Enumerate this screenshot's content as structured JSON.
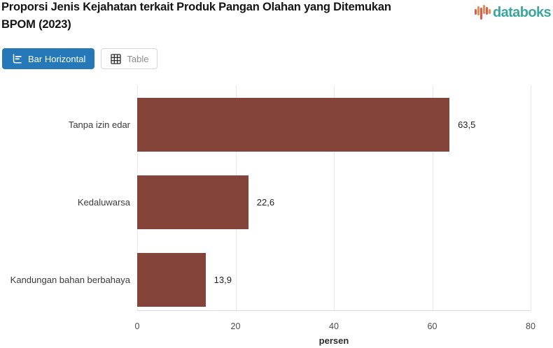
{
  "header": {
    "title_line1": "Proporsi Jenis Kejahatan terkait Produk Pangan Olahan yang Ditemukan",
    "title_line2": "BPOM (2023)",
    "logo_text": "databoks"
  },
  "tabs": [
    {
      "label": "Bar Horizontal",
      "icon": "bar-horizontal-icon",
      "active": true
    },
    {
      "label": "Table",
      "icon": "table-icon",
      "active": false
    }
  ],
  "chart_data": {
    "type": "bar",
    "orientation": "horizontal",
    "title": "Proporsi Jenis Kejahatan terkait Produk Pangan Olahan yang Ditemukan BPOM (2023)",
    "categories": [
      "Tanpa izin edar",
      "Kedaluwarsa",
      "Kandungan bahan berbahaya"
    ],
    "values": [
      63.5,
      22.6,
      13.9
    ],
    "value_labels": [
      "63,5",
      "22,6",
      "13,9"
    ],
    "xlabel": "persen",
    "xlim": [
      0,
      80
    ],
    "xticks": [
      "0",
      "20",
      "40",
      "60",
      "80"
    ],
    "grid": "vertical-gridlines",
    "legend": "none"
  },
  "colors": {
    "bar": "#854439",
    "active_tab": "#2679b8",
    "logo_teal": "#3aa79e",
    "gridline": "#e9e9e9",
    "axis_line": "#d9d9d9",
    "logo_red": "#e2594a",
    "logo_orange": "#ef8a50"
  }
}
